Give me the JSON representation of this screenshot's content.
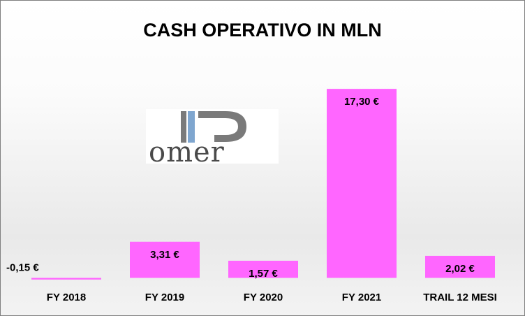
{
  "chart_data": {
    "type": "bar",
    "title": "CASH OPERATIVO IN MLN",
    "categories": [
      "FY 2018",
      "FY 2019",
      "FY 2020",
      "FY 2021",
      "TRAIL 12 MESI"
    ],
    "values": [
      -0.15,
      3.31,
      1.57,
      17.3,
      2.02
    ],
    "value_labels": [
      "-0,15 €",
      "3,31 €",
      "1,57 €",
      "17,30 €",
      "2,02 €"
    ],
    "xlabel": "",
    "ylabel": "",
    "ylim": [
      -0.15,
      17.3
    ],
    "grid": false,
    "legend": "none",
    "colors": {
      "bar": "#ff66ff",
      "text": "#000000",
      "border": "#7f7f7f"
    }
  },
  "logo": {
    "text": "omer",
    "name": "romer-logo",
    "colors": {
      "gray": "#7a7a7a",
      "blue": "#7fa6cf"
    }
  }
}
